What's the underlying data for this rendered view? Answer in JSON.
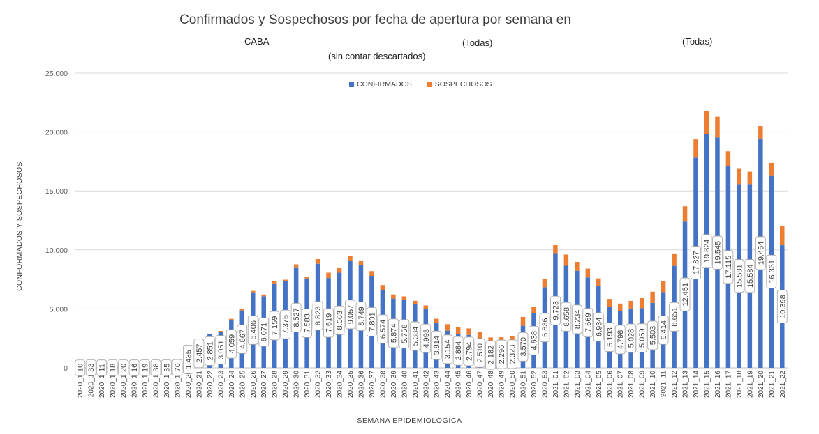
{
  "chart_data": {
    "type": "bar",
    "stacked": true,
    "title": "Confirmados y Sospechosos por fecha de apertura por semana en",
    "filters": [
      "CABA",
      "(Todas)",
      "(Todas)"
    ],
    "subtitle": "(sin contar descartados)",
    "xlabel": "SEMANA EPIDEMIOLÓGICA",
    "ylabel": "CONFORMADOS Y SOSPECHOSOS",
    "ylim": [
      0,
      25000
    ],
    "yticks": [
      "0",
      "5.000",
      "10.000",
      "15.000",
      "20.000",
      "25.000"
    ],
    "grid": true,
    "legend_position": "top",
    "categories": [
      "2020_10",
      "2020_11",
      "2020_12",
      "2020_13",
      "2020_14",
      "2020_15",
      "2020_16",
      "2020_17",
      "2020_18",
      "2020_19",
      "2020_20",
      "2020_21",
      "2020_22",
      "2020_23",
      "2020_24",
      "2020_25",
      "2020_26",
      "2020_27",
      "2020_28",
      "2020_29",
      "2020_30",
      "2020_31",
      "2020_32",
      "2020_33",
      "2020_34",
      "2020_35",
      "2020_36",
      "2020_37",
      "2020_38",
      "2020_39",
      "2020_40",
      "2020_41",
      "2020_42",
      "2020_43",
      "2020_44",
      "2020_45",
      "2020_46",
      "2020_47",
      "2020_48",
      "2020_49",
      "2020_50",
      "2020_51",
      "2020_52",
      "2020_53",
      "2021_01",
      "2021_02",
      "2021_03",
      "2021_04",
      "2021_05",
      "2021_06",
      "2021_07",
      "2021_08",
      "2021_09",
      "2021_10",
      "2021_11",
      "2021_12",
      "2021_13",
      "2021_14",
      "2021_15",
      "2021_16",
      "2021_17",
      "2021_18",
      "2021_19",
      "2021_20",
      "2021_21",
      "2021_22"
    ],
    "series": [
      {
        "name": "CONFIRMADOS",
        "color": "#4472C4",
        "values": [
          10,
          33,
          11,
          18,
          20,
          16,
          19,
          38,
          35,
          76,
          1435,
          2457,
          2851,
          3051,
          4059,
          4867,
          6406,
          6071,
          7159,
          7375,
          8527,
          7583,
          8823,
          7619,
          8063,
          9057,
          8749,
          7801,
          6574,
          5874,
          5758,
          5384,
          4993,
          3814,
          3154,
          2884,
          2794,
          2510,
          2182,
          2296,
          2323,
          3570,
          4638,
          6836,
          9723,
          8658,
          8234,
          7669,
          6934,
          5193,
          4798,
          5028,
          5059,
          5503,
          6414,
          8651,
          12451,
          17827,
          19824,
          19545,
          17115,
          15581,
          15584,
          19454,
          16331,
          10398
        ]
      },
      {
        "name": "SOSPECHOSOS",
        "color": "#ED7D31",
        "values": [
          0,
          0,
          0,
          0,
          0,
          0,
          0,
          0,
          0,
          0,
          0,
          0,
          50,
          80,
          100,
          100,
          120,
          150,
          200,
          100,
          250,
          150,
          400,
          450,
          450,
          400,
          300,
          400,
          450,
          350,
          300,
          300,
          300,
          350,
          550,
          600,
          550,
          550,
          400,
          300,
          350,
          750,
          550,
          700,
          700,
          950,
          750,
          750,
          650,
          650,
          650,
          650,
          850,
          950,
          950,
          1050,
          1250,
          1550,
          1950,
          1750,
          1250,
          1350,
          1050,
          1050,
          1050,
          1650
        ]
      }
    ],
    "data_labels": [
      "10",
      "33",
      "11",
      "18",
      "20",
      "16",
      "19",
      "38",
      "35",
      "76",
      "1.435",
      "2.457",
      "2.851",
      "3.051",
      "4.059",
      "4.867",
      "6.406",
      "6.071",
      "7.159",
      "7.375",
      "8.527",
      "7.583",
      "8.823",
      "7.619",
      "8.063",
      "9.057",
      "8.749",
      "7.801",
      "6.574",
      "5.874",
      "5.758",
      "5.384",
      "4.993",
      "3.814",
      "3.154",
      "2.884",
      "2.794",
      "2.510",
      "2.182",
      "2.296",
      "2.323",
      "3.570",
      "4.638",
      "6.836",
      "9.723",
      "8.658",
      "8.234",
      "7.669",
      "6.934",
      "5.193",
      "4.798",
      "5.028",
      "5.059",
      "5.503",
      "6.414",
      "8.651",
      "12.451",
      "17.827",
      "19.824",
      "19.545",
      "17.115",
      "15.581",
      "15.584",
      "19.454",
      "16.331",
      "10.398"
    ]
  }
}
